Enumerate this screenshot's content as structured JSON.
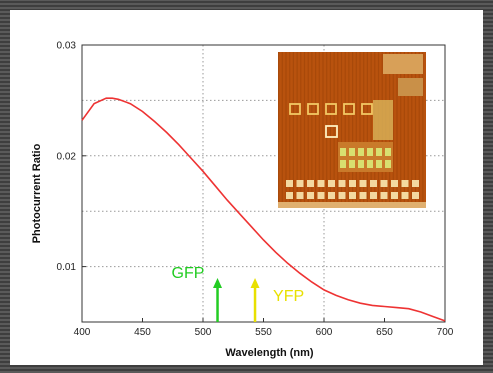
{
  "chart_data": {
    "type": "line",
    "title": "",
    "xlabel": "Wavelength (nm)",
    "ylabel": "Photocurrent Ratio",
    "xlim": [
      400,
      700
    ],
    "ylim": [
      0.005,
      0.03
    ],
    "x_ticks": [
      400,
      450,
      500,
      550,
      600,
      650,
      700
    ],
    "y_ticks": [
      0.01,
      0.02,
      0.03
    ],
    "y_tick_labels": [
      "0.01",
      "0.02",
      "0.03"
    ],
    "grid": true,
    "line_color": "#ee3333",
    "series": [
      {
        "x": [
          400,
          410,
          420,
          425,
          430,
          440,
          450,
          460,
          470,
          480,
          490,
          500,
          510,
          520,
          530,
          540,
          550,
          560,
          570,
          580,
          590,
          600,
          610,
          620,
          630,
          640,
          650,
          660,
          670,
          680,
          690,
          700
        ],
        "values": [
          0.0232,
          0.0247,
          0.0252,
          0.0252,
          0.0251,
          0.0247,
          0.024,
          0.0231,
          0.0221,
          0.021,
          0.0198,
          0.0186,
          0.0173,
          0.016,
          0.0148,
          0.0136,
          0.0124,
          0.0113,
          0.0103,
          0.0094,
          0.0086,
          0.0079,
          0.0074,
          0.007,
          0.0067,
          0.0065,
          0.0064,
          0.0063,
          0.0062,
          0.0059,
          0.0055,
          0.0051
        ]
      }
    ],
    "annotations": [
      {
        "label": "GFP",
        "x": 512,
        "color": "#22cc22"
      },
      {
        "label": "YFP",
        "x": 543,
        "color": "#e8e000"
      }
    ]
  },
  "inset_image": {
    "name": "chip-micrograph",
    "background": "#b8520e",
    "accent": "#f2c864"
  }
}
